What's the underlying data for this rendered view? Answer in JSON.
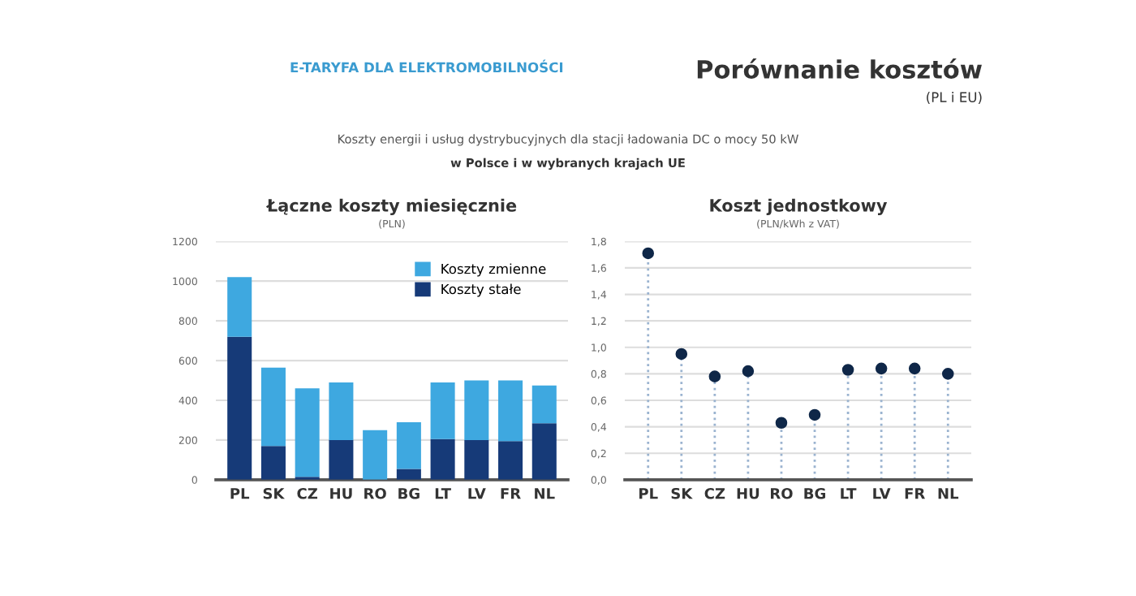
{
  "chart_data": [
    {
      "type": "bar",
      "title": "Łączne koszty miesięcznie",
      "subtitle": "(PLN)",
      "annotations": [
        "E-TARYFA DLA ELEKTROMOBILNOŚCI",
        "Porównanie kosztów",
        "(PL i EU)",
        "Koszty energii i usług dystrybucyjnych dla stacji ładowania DC o mocy 50 kW",
        "w Polsce i w wybranych krajach UE"
      ],
      "categories": [
        "PL",
        "SK",
        "CZ",
        "HU",
        "RO",
        "BG",
        "LT",
        "LV",
        "FR",
        "NL"
      ],
      "stacked": true,
      "series": [
        {
          "name": "Koszty stałe",
          "color": "#163a78",
          "values": [
            720,
            170,
            15,
            200,
            0,
            55,
            205,
            200,
            195,
            285
          ]
        },
        {
          "name": "Koszty zmienne",
          "color": "#3ea8e0",
          "values": [
            300,
            395,
            445,
            290,
            250,
            235,
            285,
            300,
            305,
            190
          ]
        }
      ],
      "ylim": [
        0,
        1200
      ],
      "yticks": [
        0,
        200,
        400,
        600,
        800,
        1000,
        1200
      ],
      "grid": "y",
      "legend": "top right"
    },
    {
      "type": "lollipop",
      "title": "Koszt jednostkowy",
      "subtitle": "(PLN/kWh z VAT)",
      "categories": [
        "PL",
        "SK",
        "CZ",
        "HU",
        "RO",
        "BG",
        "LT",
        "LV",
        "FR",
        "NL"
      ],
      "series": [
        {
          "color": "#0f2748",
          "values": [
            1.71,
            0.95,
            0.78,
            0.82,
            0.43,
            0.49,
            0.83,
            0.84,
            0.84,
            0.8
          ]
        }
      ],
      "marker": "circle",
      "line_style": "dotted",
      "ylim": [
        0,
        1.8
      ],
      "yticks": [
        {
          "value": 0,
          "label": "0,0"
        },
        {
          "value": 0.2,
          "label": "0,2"
        },
        {
          "value": 0.4,
          "label": "0,4"
        },
        {
          "value": 0.6,
          "label": "0,6"
        },
        {
          "value": 0.8,
          "label": "0,8"
        },
        {
          "value": 1.0,
          "label": "1,0"
        },
        {
          "value": 1.2,
          "label": "1,2"
        },
        {
          "value": 1.4,
          "label": "1,4"
        },
        {
          "value": 1.6,
          "label": "1,6"
        },
        {
          "value": 1.8,
          "label": "1,8"
        }
      ],
      "grid": "y"
    }
  ]
}
